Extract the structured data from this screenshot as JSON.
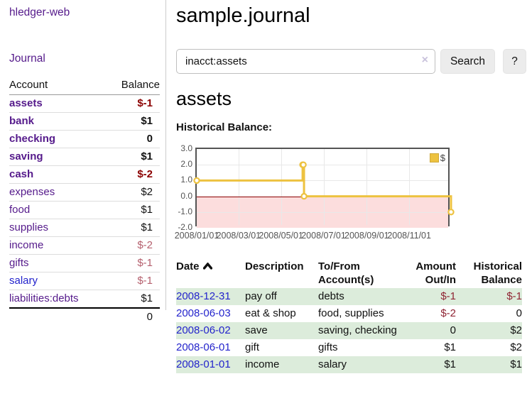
{
  "sidebar": {
    "brand": "hledger-web",
    "journal_link": "Journal",
    "accounts_table": {
      "headers": {
        "account": "Account",
        "balance": "Balance"
      },
      "rows": [
        {
          "name": "assets",
          "balance": "$-1"
        },
        {
          "name": "bank",
          "balance": "$1"
        },
        {
          "name": "checking",
          "balance": "0"
        },
        {
          "name": "saving",
          "balance": "$1"
        },
        {
          "name": "cash",
          "balance": "$-2"
        },
        {
          "name": "expenses",
          "balance": "$2"
        },
        {
          "name": "food",
          "balance": "$1"
        },
        {
          "name": "supplies",
          "balance": "$1"
        },
        {
          "name": "income",
          "balance": "$-2"
        },
        {
          "name": "gifts",
          "balance": "$-1"
        },
        {
          "name": "salary",
          "balance": "$-1"
        },
        {
          "name": "liabilities:debts",
          "balance": "$1"
        }
      ],
      "total": "0"
    }
  },
  "header": {
    "title": "sample.journal"
  },
  "search": {
    "value": "inacct:assets",
    "clear_icon": "×",
    "button_label": "Search",
    "help_label": "?"
  },
  "account_page": {
    "heading": "assets",
    "chart_title": "Historical Balance:"
  },
  "chart_data": {
    "type": "line",
    "step": true,
    "series": [
      {
        "name": "$",
        "color": "#edc240",
        "points": [
          [
            "2008-01-01",
            1
          ],
          [
            "2008-06-01",
            2
          ],
          [
            "2008-06-02",
            2
          ],
          [
            "2008-06-03",
            0
          ],
          [
            "2008-12-31",
            -1
          ]
        ]
      }
    ],
    "x_range": [
      "2008-01-01",
      "2008-12-31"
    ],
    "ylim": [
      -2,
      3
    ],
    "yticks": [
      3.0,
      2.0,
      1.0,
      0.0,
      -1.0,
      -2.0
    ],
    "ytick_labels": [
      "3.0",
      "2.0",
      "1.0",
      "0.0",
      "-1.0",
      "-2.0"
    ],
    "xtick_labels": [
      "2008/01/01",
      "2008/03/01",
      "2008/05/01",
      "2008/07/01",
      "2008/09/01",
      "2008/11/01"
    ],
    "grid": true,
    "legend_position": "top-right",
    "negative_region_color": "#fcdddd",
    "zero_line_color": "#8b0000"
  },
  "transactions": {
    "columns": {
      "date": "Date",
      "description": "Description",
      "accounts": "To/From Account(s)",
      "amount": "Amount Out/In",
      "balance": "Historical Balance"
    },
    "rows": [
      {
        "date": "2008-12-31",
        "description": "pay off",
        "accounts": "debts",
        "amount": "$-1",
        "balance": "$-1"
      },
      {
        "date": "2008-06-03",
        "description": "eat & shop",
        "accounts": "food, supplies",
        "amount": "$-2",
        "balance": "0"
      },
      {
        "date": "2008-06-02",
        "description": "save",
        "accounts": "saving, checking",
        "amount": "0",
        "balance": "$2"
      },
      {
        "date": "2008-06-01",
        "description": "gift",
        "accounts": "gifts",
        "amount": "$1",
        "balance": "$2"
      },
      {
        "date": "2008-01-01",
        "description": "income",
        "accounts": "salary",
        "amount": "$1",
        "balance": "$1"
      }
    ]
  },
  "colors": {
    "link_visited_purple": "#551a8b",
    "link_blue": "#2424cc",
    "negative_bold": "#8b0000",
    "negative_muted": "#b5606e",
    "negative_table": "#8f2433",
    "row_highlight_green": "#dcecdb",
    "series_gold": "#edc240",
    "chart_border": "#545454"
  }
}
